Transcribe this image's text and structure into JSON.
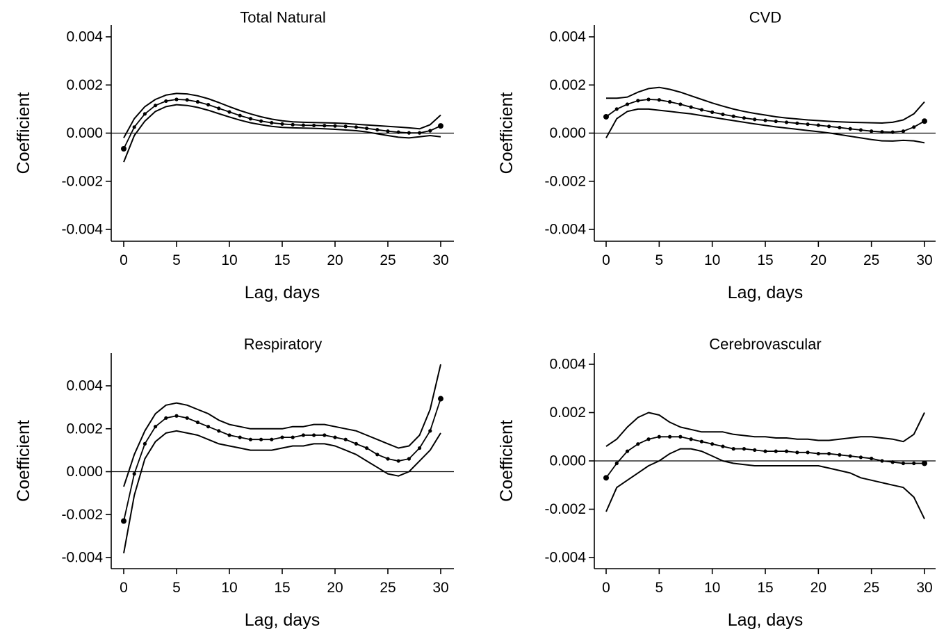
{
  "figure": {
    "background": "#ffffff",
    "line_color": "#000000"
  },
  "chart_data": [
    {
      "type": "line",
      "title": "Total Natural",
      "xlabel": "Lag, days",
      "ylabel": "Coefficient",
      "xlim": [
        0,
        30
      ],
      "ylim": [
        -0.004,
        0.004
      ],
      "xticks": [
        "0",
        "5",
        "10",
        "15",
        "20",
        "25",
        "30"
      ],
      "yticks": [
        "0.004",
        "0.002",
        "0.000",
        "-0.002",
        "-0.004"
      ],
      "reference_line": 0,
      "grid": false,
      "legend": "none",
      "x": [
        0,
        1,
        2,
        3,
        4,
        5,
        6,
        7,
        8,
        9,
        10,
        11,
        12,
        13,
        14,
        15,
        16,
        17,
        18,
        19,
        20,
        21,
        22,
        23,
        24,
        25,
        26,
        27,
        28,
        29,
        30
      ],
      "series": [
        {
          "role": "estimate",
          "markers": true,
          "values": [
            -0.00065,
            0.00025,
            0.0008,
            0.00115,
            0.00133,
            0.0014,
            0.00138,
            0.0013,
            0.00118,
            0.00103,
            0.00088,
            0.00073,
            0.0006,
            0.0005,
            0.00043,
            0.00038,
            0.00035,
            0.00033,
            0.00032,
            0.00031,
            0.0003,
            0.00028,
            0.00025,
            0.0002,
            0.00014,
            8e-05,
            4e-05,
            1e-05,
            1e-05,
            0.0001,
            0.0003
          ]
        },
        {
          "role": "upper",
          "markers": false,
          "values": [
            -0.0002,
            0.0006,
            0.0011,
            0.0014,
            0.00158,
            0.00165,
            0.00163,
            0.00155,
            0.00143,
            0.00127,
            0.0011,
            0.00094,
            0.0008,
            0.00068,
            0.00058,
            0.00051,
            0.00047,
            0.00045,
            0.00044,
            0.00043,
            0.00042,
            0.0004,
            0.00037,
            0.00034,
            0.00031,
            0.00028,
            0.00025,
            0.00022,
            0.00018,
            0.00035,
            0.00075
          ]
        },
        {
          "role": "lower",
          "markers": false,
          "values": [
            -0.0012,
            -0.0001,
            0.0005,
            0.0009,
            0.0011,
            0.00118,
            0.00115,
            0.00107,
            0.00095,
            0.00081,
            0.00067,
            0.00054,
            0.00043,
            0.00035,
            0.00028,
            0.00024,
            0.00022,
            0.00021,
            0.0002,
            0.00018,
            0.00016,
            0.00013,
            0.0001,
            5e-05,
            -3e-05,
            -0.0001,
            -0.00017,
            -0.0002,
            -0.00015,
            -0.0001,
            -0.00015
          ]
        }
      ]
    },
    {
      "type": "line",
      "title": "CVD",
      "xlabel": "Lag, days",
      "ylabel": "Coefficient",
      "xlim": [
        0,
        30
      ],
      "ylim": [
        -0.004,
        0.004
      ],
      "xticks": [
        "0",
        "5",
        "10",
        "15",
        "20",
        "25",
        "30"
      ],
      "yticks": [
        "0.004",
        "0.002",
        "0.000",
        "-0.002",
        "-0.004"
      ],
      "reference_line": 0,
      "grid": false,
      "legend": "none",
      "x": [
        0,
        1,
        2,
        3,
        4,
        5,
        6,
        7,
        8,
        9,
        10,
        11,
        12,
        13,
        14,
        15,
        16,
        17,
        18,
        19,
        20,
        21,
        22,
        23,
        24,
        25,
        26,
        27,
        28,
        29,
        30
      ],
      "series": [
        {
          "role": "estimate",
          "markers": true,
          "values": [
            0.00068,
            0.001,
            0.0012,
            0.00135,
            0.0014,
            0.00138,
            0.0013,
            0.0012,
            0.00108,
            0.00097,
            0.00087,
            0.00078,
            0.0007,
            0.00063,
            0.00057,
            0.00053,
            0.00049,
            0.00045,
            0.00041,
            0.00037,
            0.00033,
            0.00028,
            0.00023,
            0.00018,
            0.00013,
            8e-05,
            5e-05,
            4e-05,
            8e-05,
            0.00025,
            0.0005
          ]
        },
        {
          "role": "upper",
          "markers": false,
          "values": [
            0.00145,
            0.00145,
            0.0015,
            0.0017,
            0.00185,
            0.0019,
            0.00182,
            0.0017,
            0.00155,
            0.0014,
            0.00125,
            0.00112,
            0.001,
            0.0009,
            0.00082,
            0.00075,
            0.00068,
            0.00063,
            0.00059,
            0.00055,
            0.00052,
            0.00049,
            0.00047,
            0.00045,
            0.00044,
            0.00043,
            0.00042,
            0.00045,
            0.00055,
            0.0008,
            0.0013
          ]
        },
        {
          "role": "lower",
          "markers": false,
          "values": [
            -0.0002,
            0.0006,
            0.0009,
            0.001,
            0.001,
            0.00095,
            0.0009,
            0.00085,
            0.0008,
            0.00073,
            0.00066,
            0.00059,
            0.00052,
            0.00045,
            0.00038,
            0.00032,
            0.00026,
            0.00021,
            0.00016,
            0.00011,
            6e-05,
            1e-05,
            -6e-05,
            -0.00013,
            -0.0002,
            -0.00027,
            -0.00032,
            -0.00033,
            -0.0003,
            -0.00032,
            -0.0004
          ]
        }
      ]
    },
    {
      "type": "line",
      "title": "Respiratory",
      "xlabel": "Lag, days",
      "ylabel": "Coefficient",
      "xlim": [
        0,
        30
      ],
      "ylim": [
        -0.004,
        0.004
      ],
      "xticks": [
        "0",
        "5",
        "10",
        "15",
        "20",
        "25",
        "30"
      ],
      "yticks": [
        "0.004",
        "0.002",
        "0.000",
        "-0.002",
        "-0.004"
      ],
      "reference_line": 0,
      "grid": false,
      "legend": "none",
      "x": [
        0,
        1,
        2,
        3,
        4,
        5,
        6,
        7,
        8,
        9,
        10,
        11,
        12,
        13,
        14,
        15,
        16,
        17,
        18,
        19,
        20,
        21,
        22,
        23,
        24,
        25,
        26,
        27,
        28,
        29,
        30
      ],
      "series": [
        {
          "role": "estimate",
          "markers": true,
          "values": [
            -0.0023,
            -0.0001,
            0.0013,
            0.0021,
            0.0025,
            0.0026,
            0.0025,
            0.0023,
            0.0021,
            0.0019,
            0.0017,
            0.0016,
            0.0015,
            0.0015,
            0.0015,
            0.0016,
            0.0016,
            0.0017,
            0.0017,
            0.0017,
            0.0016,
            0.0015,
            0.0013,
            0.0011,
            0.0008,
            0.0006,
            0.0005,
            0.0006,
            0.0011,
            0.0019,
            0.0034
          ]
        },
        {
          "role": "upper",
          "markers": false,
          "values": [
            -0.0007,
            0.0008,
            0.0019,
            0.0027,
            0.0031,
            0.0032,
            0.0031,
            0.0029,
            0.0027,
            0.0024,
            0.0022,
            0.0021,
            0.002,
            0.002,
            0.002,
            0.002,
            0.0021,
            0.0021,
            0.0022,
            0.0022,
            0.0021,
            0.002,
            0.0019,
            0.0017,
            0.0015,
            0.0013,
            0.0011,
            0.0012,
            0.0017,
            0.0029,
            0.005
          ]
        },
        {
          "role": "lower",
          "markers": false,
          "values": [
            -0.0038,
            -0.0011,
            0.0006,
            0.0014,
            0.0018,
            0.0019,
            0.0018,
            0.0017,
            0.0015,
            0.0013,
            0.0012,
            0.0011,
            0.001,
            0.001,
            0.001,
            0.0011,
            0.0012,
            0.0012,
            0.0013,
            0.0013,
            0.0012,
            0.001,
            0.0008,
            0.0005,
            0.0002,
            -0.0001,
            -0.0002,
            0.0,
            0.0005,
            0.001,
            0.0018
          ]
        }
      ]
    },
    {
      "type": "line",
      "title": "Cerebrovascular",
      "xlabel": "Lag, days",
      "ylabel": "Coefficient",
      "xlim": [
        0,
        30
      ],
      "ylim": [
        -0.004,
        0.004
      ],
      "xticks": [
        "0",
        "5",
        "10",
        "15",
        "20",
        "25",
        "30"
      ],
      "yticks": [
        "0.004",
        "0.002",
        "0.000",
        "-0.002",
        "-0.004"
      ],
      "reference_line": 0,
      "grid": false,
      "legend": "none",
      "x": [
        0,
        1,
        2,
        3,
        4,
        5,
        6,
        7,
        8,
        9,
        10,
        11,
        12,
        13,
        14,
        15,
        16,
        17,
        18,
        19,
        20,
        21,
        22,
        23,
        24,
        25,
        26,
        27,
        28,
        29,
        30
      ],
      "series": [
        {
          "role": "estimate",
          "markers": true,
          "values": [
            -0.0007,
            -0.0001,
            0.0004,
            0.0007,
            0.0009,
            0.001,
            0.001,
            0.001,
            0.0009,
            0.0008,
            0.0007,
            0.0006,
            0.0005,
            0.0005,
            0.00045,
            0.0004,
            0.0004,
            0.0004,
            0.00035,
            0.00035,
            0.0003,
            0.0003,
            0.00025,
            0.0002,
            0.00015,
            0.0001,
            0.0,
            -5e-05,
            -0.0001,
            -0.0001,
            -0.0001
          ]
        },
        {
          "role": "upper",
          "markers": false,
          "values": [
            0.0006,
            0.0009,
            0.0014,
            0.0018,
            0.002,
            0.0019,
            0.0016,
            0.0014,
            0.0013,
            0.0012,
            0.0012,
            0.0012,
            0.0011,
            0.00105,
            0.001,
            0.001,
            0.00095,
            0.00095,
            0.0009,
            0.0009,
            0.00085,
            0.00085,
            0.0009,
            0.00095,
            0.001,
            0.001,
            0.00095,
            0.0009,
            0.0008,
            0.0011,
            0.002
          ]
        },
        {
          "role": "lower",
          "markers": false,
          "values": [
            -0.0021,
            -0.0011,
            -0.0008,
            -0.0005,
            -0.0002,
            0.0,
            0.0003,
            0.0005,
            0.0005,
            0.0004,
            0.0002,
            0.0,
            -0.0001,
            -0.00015,
            -0.0002,
            -0.0002,
            -0.0002,
            -0.0002,
            -0.0002,
            -0.0002,
            -0.0002,
            -0.0003,
            -0.0004,
            -0.0005,
            -0.0007,
            -0.0008,
            -0.0009,
            -0.001,
            -0.0011,
            -0.0015,
            -0.0024
          ]
        }
      ]
    }
  ]
}
